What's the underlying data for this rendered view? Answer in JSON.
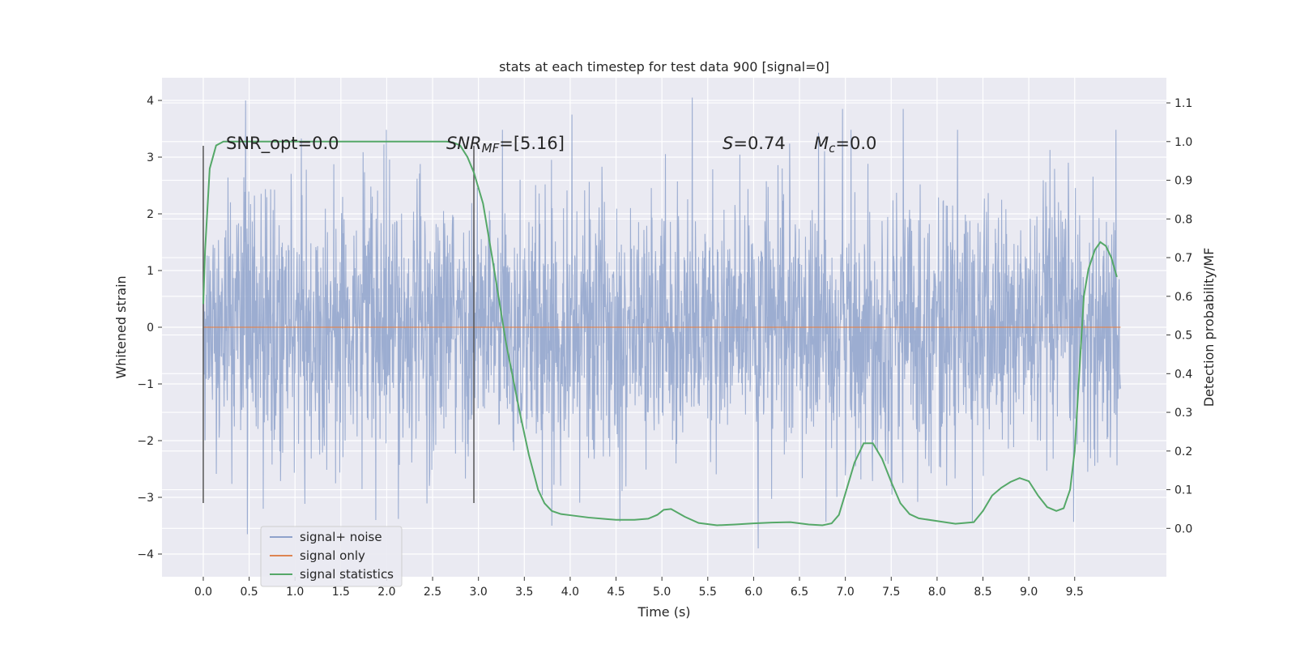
{
  "chart_data": {
    "type": "line",
    "title": "stats at each timestep for test data 900 [signal=0]",
    "xlabel": "Time (s)",
    "ylabel": "Whitened strain",
    "y2label": "Detection probability/MF",
    "xlim": [
      -0.45,
      10.5
    ],
    "ylim": [
      -4.4,
      4.4
    ],
    "y2lim": [
      -0.125,
      1.165
    ],
    "xticks": [
      "0.0",
      "0.5",
      "1.0",
      "1.5",
      "2.0",
      "2.5",
      "3.0",
      "3.5",
      "4.0",
      "4.5",
      "5.0",
      "5.5",
      "6.0",
      "6.5",
      "7.0",
      "7.5",
      "8.0",
      "8.5",
      "9.0",
      "9.5"
    ],
    "yticks": [
      "−4",
      "−3",
      "−2",
      "−1",
      "0",
      "1",
      "2",
      "3",
      "4"
    ],
    "y2ticks": [
      "0.0",
      "0.1",
      "0.2",
      "0.3",
      "0.4",
      "0.5",
      "0.6",
      "0.7",
      "0.8",
      "0.9",
      "1.0",
      "1.1"
    ],
    "grid": true,
    "legend_position": "lower-left",
    "annotations": {
      "snr_opt": "SNR_opt=0.0",
      "snr_mf_main": "SNR",
      "snr_mf_sub": "MF",
      "snr_mf_rest": "=[5.16]",
      "s_main": "S",
      "s_rest": "=0.74",
      "mc_main": "M",
      "mc_sub": "c",
      "mc_rest": "=0.0"
    },
    "vertical_lines": [
      {
        "x": 0.0,
        "ymin": -3.1,
        "ymax": 3.2
      },
      {
        "x": 2.95,
        "ymin": -3.1,
        "ymax": 3.2
      }
    ],
    "series": [
      {
        "name": "signal+ noise",
        "color": "#8ea2cb",
        "x_range": [
          0.0,
          10.0
        ],
        "envelope": {
          "typical_abs": 1.9,
          "peak_range": [
            -3.9,
            4.05
          ]
        },
        "notable_peaks": [
          [
            0.46,
            4.0
          ],
          [
            5.33,
            4.05
          ],
          [
            6.05,
            -3.9
          ],
          [
            6.97,
            3.85
          ],
          [
            7.63,
            3.85
          ],
          [
            4.02,
            3.75
          ],
          [
            3.8,
            -3.5
          ],
          [
            0.48,
            -3.65
          ],
          [
            1.88,
            -3.4
          ]
        ]
      },
      {
        "name": "signal only",
        "color": "#dd8452",
        "x": [
          0.0,
          10.0
        ],
        "values": [
          0.0,
          0.0
        ]
      },
      {
        "name": "signal statistics",
        "color": "#55a868",
        "axis": "right",
        "x": [
          0.0,
          0.02,
          0.07,
          0.14,
          0.22,
          0.35,
          0.5,
          1.0,
          1.5,
          2.0,
          2.5,
          2.65,
          2.72,
          2.8,
          2.88,
          2.95,
          3.05,
          3.15,
          3.3,
          3.45,
          3.55,
          3.65,
          3.72,
          3.8,
          3.9,
          4.0,
          4.2,
          4.4,
          4.5,
          4.7,
          4.85,
          4.95,
          5.02,
          5.1,
          5.25,
          5.4,
          5.6,
          5.8,
          6.0,
          6.2,
          6.4,
          6.6,
          6.75,
          6.85,
          6.93,
          7.0,
          7.1,
          7.2,
          7.3,
          7.4,
          7.5,
          7.6,
          7.7,
          7.8,
          8.0,
          8.2,
          8.4,
          8.5,
          8.6,
          8.7,
          8.8,
          8.9,
          9.0,
          9.1,
          9.2,
          9.3,
          9.38,
          9.45,
          9.5,
          9.55,
          9.6,
          9.65,
          9.72,
          9.78,
          9.84,
          9.9,
          9.96
        ],
        "values": [
          0.58,
          0.72,
          0.93,
          0.99,
          1.0,
          1.0,
          1.0,
          1.0,
          1.0,
          1.0,
          1.0,
          1.0,
          0.998,
          0.99,
          0.96,
          0.92,
          0.84,
          0.7,
          0.48,
          0.3,
          0.19,
          0.1,
          0.065,
          0.045,
          0.037,
          0.034,
          0.028,
          0.024,
          0.022,
          0.022,
          0.025,
          0.035,
          0.048,
          0.05,
          0.03,
          0.014,
          0.008,
          0.01,
          0.013,
          0.015,
          0.016,
          0.01,
          0.008,
          0.013,
          0.035,
          0.09,
          0.17,
          0.22,
          0.22,
          0.18,
          0.12,
          0.065,
          0.037,
          0.026,
          0.019,
          0.012,
          0.016,
          0.045,
          0.085,
          0.105,
          0.12,
          0.13,
          0.122,
          0.085,
          0.055,
          0.045,
          0.052,
          0.1,
          0.2,
          0.4,
          0.6,
          0.67,
          0.72,
          0.74,
          0.73,
          0.7,
          0.65
        ]
      }
    ]
  }
}
